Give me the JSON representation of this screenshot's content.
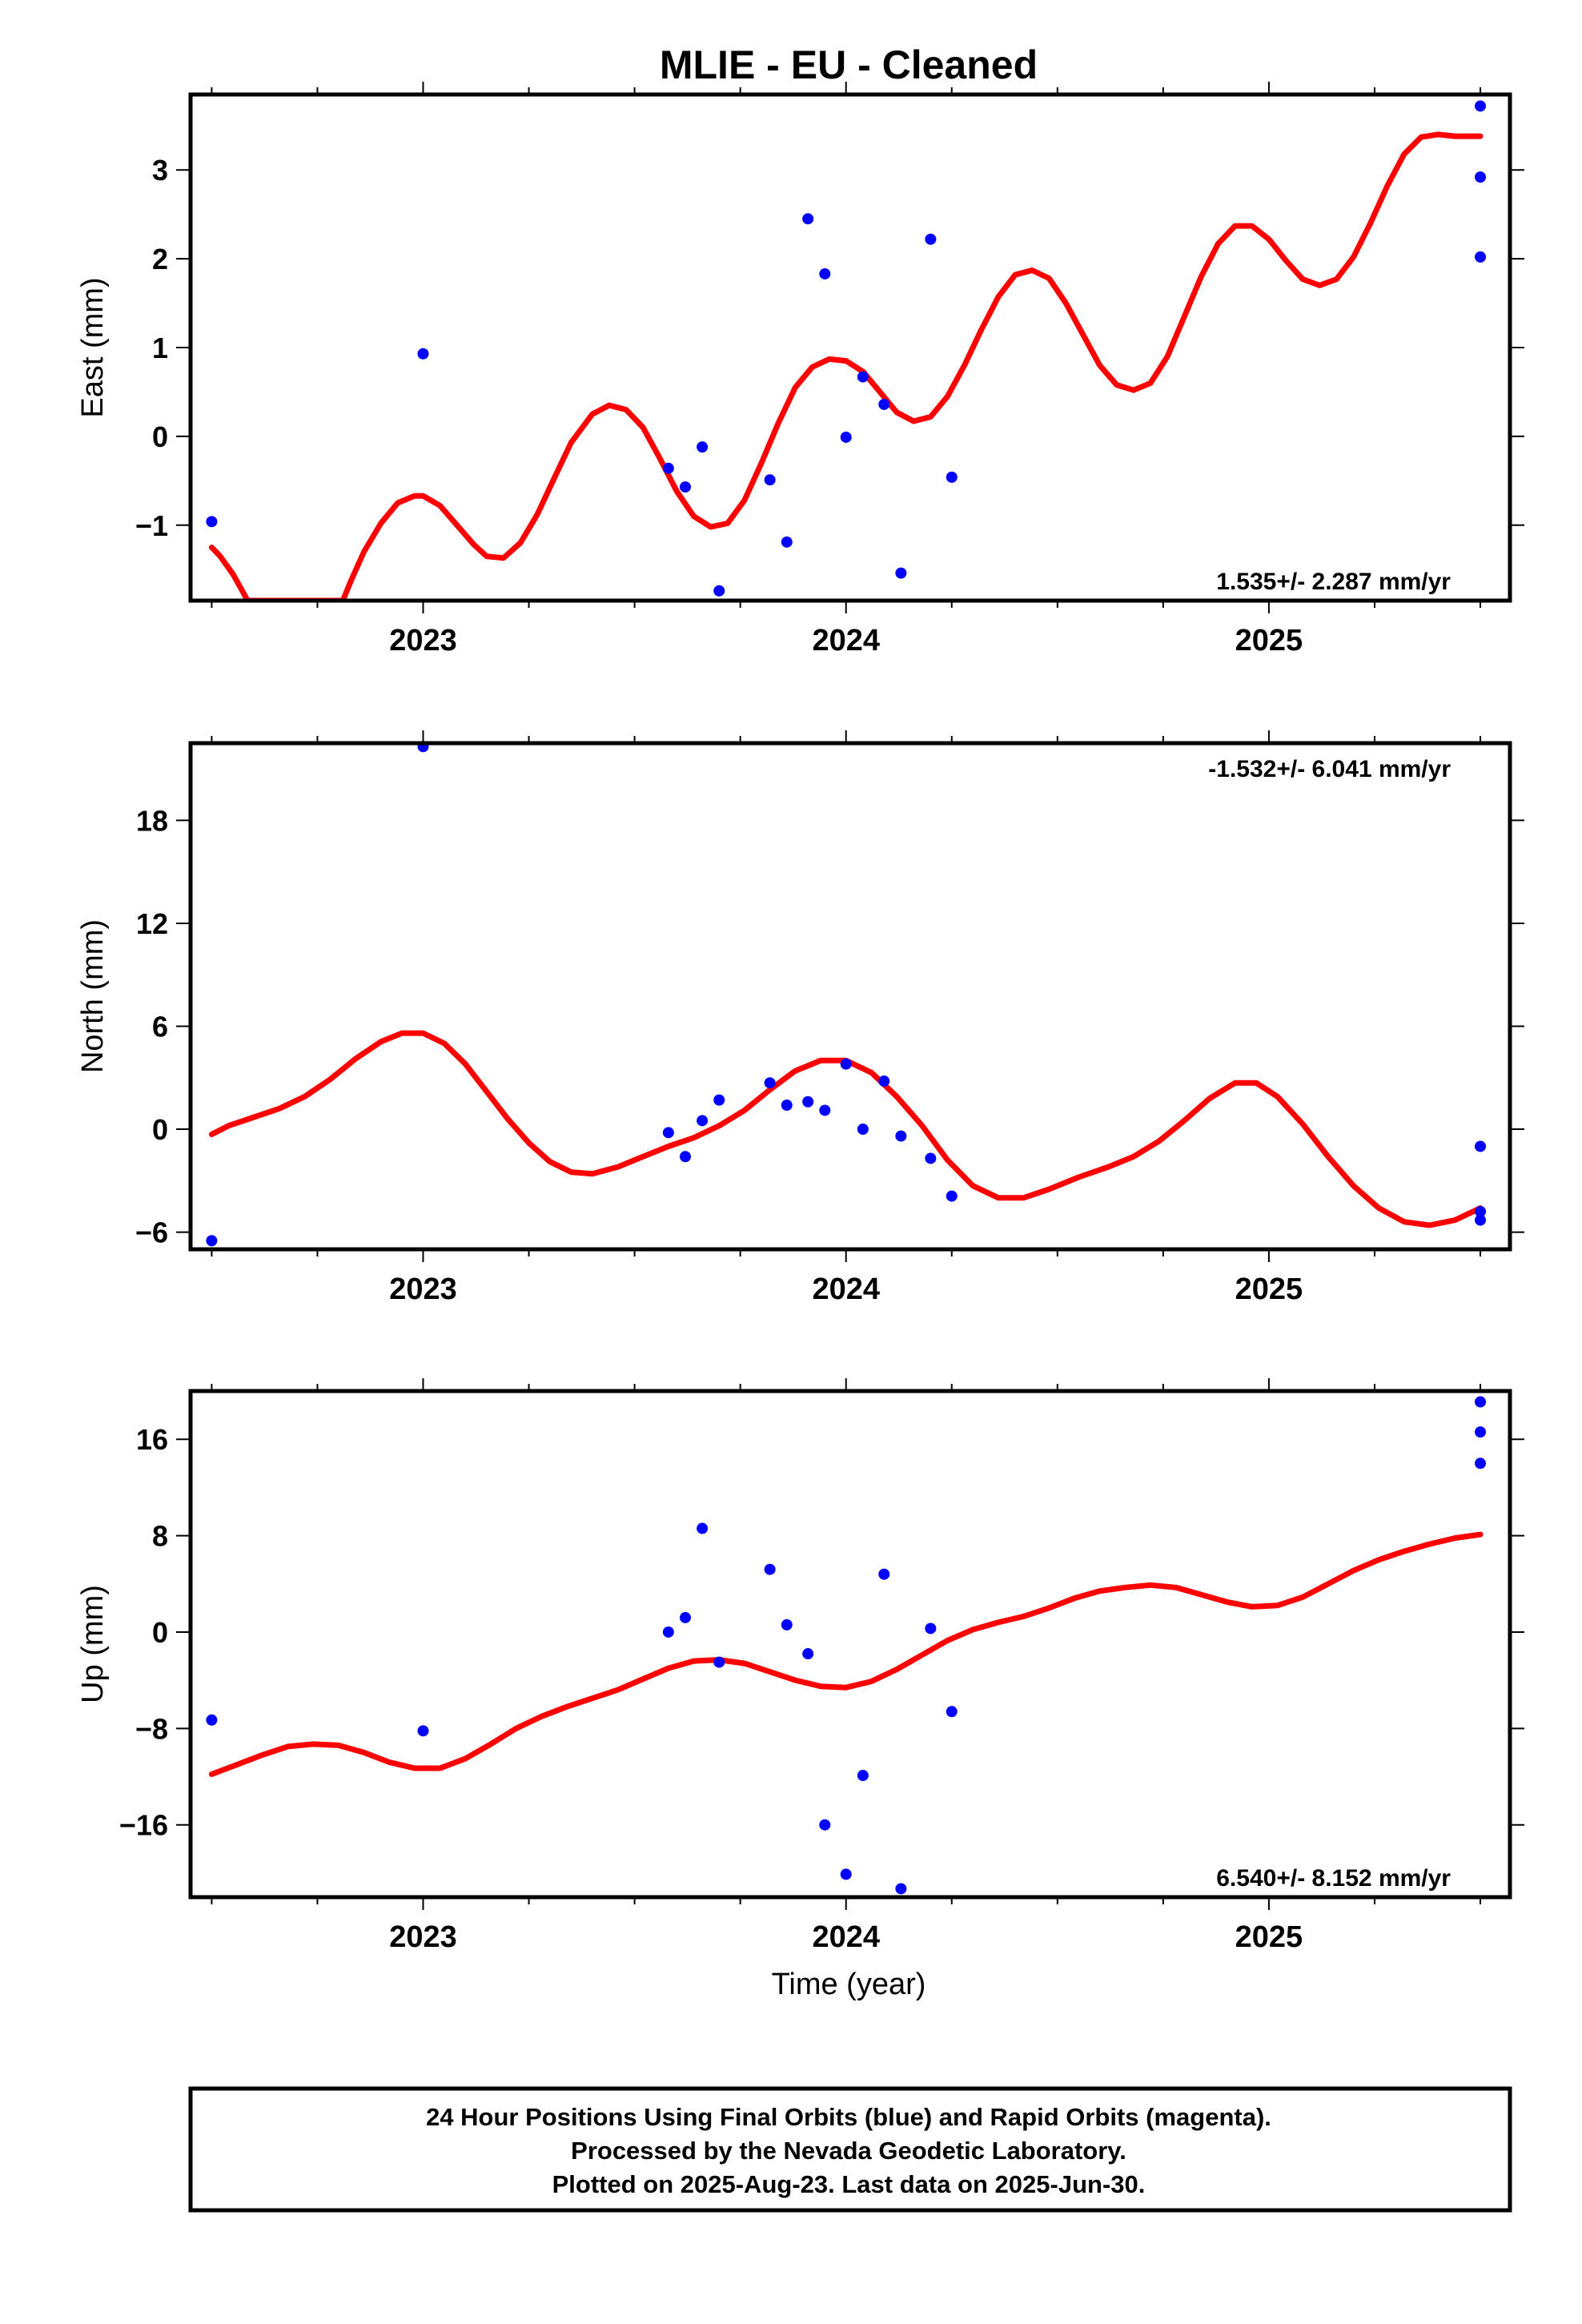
{
  "chart_data": {
    "title": "MLIE  - EU - Cleaned",
    "xlabel": "Time (year)",
    "x_ticks": [
      2023,
      2024,
      2025
    ],
    "x_range": [
      2022.45,
      2025.57
    ],
    "colors": {
      "points": "#0000ff",
      "fit": "#ff0000",
      "axes": "#000000"
    },
    "panels": [
      {
        "ylabel": "East (mm)",
        "type": "scatter",
        "ylim": [
          -1.85,
          3.85
        ],
        "yticks": [
          -1,
          0,
          1,
          2,
          3
        ],
        "rate_label": "1.535+/- 2.287 mm/yr",
        "rate_position": "bottom-right",
        "points": [
          [
            2022.5,
            -0.96
          ],
          [
            2023.0,
            0.93
          ],
          [
            2023.58,
            -0.36
          ],
          [
            2023.62,
            -0.57
          ],
          [
            2023.66,
            -0.12
          ],
          [
            2023.7,
            -1.74
          ],
          [
            2023.82,
            -0.49
          ],
          [
            2023.86,
            -1.19
          ],
          [
            2023.91,
            2.45
          ],
          [
            2023.95,
            1.83
          ],
          [
            2024.0,
            -0.01
          ],
          [
            2024.04,
            0.67
          ],
          [
            2024.09,
            0.36
          ],
          [
            2024.13,
            -1.54
          ],
          [
            2024.2,
            2.22
          ],
          [
            2024.25,
            -0.46
          ],
          [
            2025.5,
            3.72
          ],
          [
            2025.5,
            2.92
          ],
          [
            2025.5,
            2.02
          ]
        ],
        "fit": [
          [
            2022.5,
            -1.25
          ],
          [
            2022.52,
            -1.35
          ],
          [
            2022.55,
            -1.55
          ],
          [
            2022.57,
            -1.72
          ],
          [
            2022.585,
            -1.85
          ],
          [
            2022.81,
            -1.85
          ],
          [
            2022.83,
            -1.62
          ],
          [
            2022.86,
            -1.3
          ],
          [
            2022.9,
            -0.98
          ],
          [
            2022.94,
            -0.75
          ],
          [
            2022.98,
            -0.67
          ],
          [
            2023.0,
            -0.67
          ],
          [
            2023.04,
            -0.78
          ],
          [
            2023.08,
            -1.0
          ],
          [
            2023.12,
            -1.22
          ],
          [
            2023.15,
            -1.35
          ],
          [
            2023.19,
            -1.37
          ],
          [
            2023.23,
            -1.2
          ],
          [
            2023.27,
            -0.88
          ],
          [
            2023.31,
            -0.47
          ],
          [
            2023.35,
            -0.07
          ],
          [
            2023.4,
            0.25
          ],
          [
            2023.44,
            0.35
          ],
          [
            2023.48,
            0.3
          ],
          [
            2023.52,
            0.1
          ],
          [
            2023.56,
            -0.25
          ],
          [
            2023.6,
            -0.62
          ],
          [
            2023.64,
            -0.9
          ],
          [
            2023.68,
            -1.02
          ],
          [
            2023.72,
            -0.98
          ],
          [
            2023.76,
            -0.72
          ],
          [
            2023.8,
            -0.3
          ],
          [
            2023.84,
            0.15
          ],
          [
            2023.88,
            0.55
          ],
          [
            2023.92,
            0.78
          ],
          [
            2023.96,
            0.87
          ],
          [
            2024.0,
            0.85
          ],
          [
            2024.04,
            0.73
          ],
          [
            2024.08,
            0.5
          ],
          [
            2024.12,
            0.27
          ],
          [
            2024.16,
            0.17
          ],
          [
            2024.2,
            0.22
          ],
          [
            2024.24,
            0.45
          ],
          [
            2024.28,
            0.8
          ],
          [
            2024.32,
            1.2
          ],
          [
            2024.36,
            1.57
          ],
          [
            2024.4,
            1.82
          ],
          [
            2024.44,
            1.87
          ],
          [
            2024.48,
            1.78
          ],
          [
            2024.52,
            1.5
          ],
          [
            2024.56,
            1.15
          ],
          [
            2024.6,
            0.8
          ],
          [
            2024.64,
            0.58
          ],
          [
            2024.68,
            0.52
          ],
          [
            2024.72,
            0.6
          ],
          [
            2024.76,
            0.9
          ],
          [
            2024.8,
            1.35
          ],
          [
            2024.84,
            1.8
          ],
          [
            2024.88,
            2.17
          ],
          [
            2024.92,
            2.37
          ],
          [
            2024.96,
            2.37
          ],
          [
            2025.0,
            2.22
          ],
          [
            2025.04,
            1.98
          ],
          [
            2025.08,
            1.77
          ],
          [
            2025.12,
            1.7
          ],
          [
            2025.16,
            1.77
          ],
          [
            2025.2,
            2.02
          ],
          [
            2025.24,
            2.4
          ],
          [
            2025.28,
            2.82
          ],
          [
            2025.32,
            3.18
          ],
          [
            2025.36,
            3.37
          ],
          [
            2025.4,
            3.4
          ],
          [
            2025.44,
            3.38
          ],
          [
            2025.5,
            3.38
          ]
        ]
      },
      {
        "ylabel": "North (mm)",
        "type": "scatter",
        "ylim": [
          -7.0,
          22.5
        ],
        "yticks": [
          -6,
          0,
          6,
          12,
          18
        ],
        "rate_label": "-1.532+/- 6.041 mm/yr",
        "rate_position": "top-right",
        "points": [
          [
            2022.5,
            -6.5
          ],
          [
            2023.0,
            22.3
          ],
          [
            2023.58,
            -0.2
          ],
          [
            2023.62,
            -1.6
          ],
          [
            2023.66,
            0.5
          ],
          [
            2023.7,
            1.7
          ],
          [
            2023.82,
            2.7
          ],
          [
            2023.86,
            1.4
          ],
          [
            2023.91,
            1.6
          ],
          [
            2023.95,
            1.1
          ],
          [
            2024.0,
            3.8
          ],
          [
            2024.04,
            0.0
          ],
          [
            2024.09,
            2.8
          ],
          [
            2024.13,
            -0.4
          ],
          [
            2024.2,
            -1.7
          ],
          [
            2024.25,
            -3.9
          ],
          [
            2025.5,
            -1.0
          ],
          [
            2025.5,
            -4.8
          ],
          [
            2025.5,
            -5.3
          ]
        ],
        "fit": [
          [
            2022.5,
            -0.3
          ],
          [
            2022.54,
            0.2
          ],
          [
            2022.6,
            0.7
          ],
          [
            2022.66,
            1.2
          ],
          [
            2022.72,
            1.9
          ],
          [
            2022.78,
            2.9
          ],
          [
            2022.84,
            4.1
          ],
          [
            2022.9,
            5.1
          ],
          [
            2022.95,
            5.6
          ],
          [
            2023.0,
            5.6
          ],
          [
            2023.05,
            5.0
          ],
          [
            2023.1,
            3.8
          ],
          [
            2023.15,
            2.2
          ],
          [
            2023.2,
            0.6
          ],
          [
            2023.25,
            -0.8
          ],
          [
            2023.3,
            -1.9
          ],
          [
            2023.35,
            -2.5
          ],
          [
            2023.4,
            -2.6
          ],
          [
            2023.46,
            -2.2
          ],
          [
            2023.52,
            -1.6
          ],
          [
            2023.58,
            -1.0
          ],
          [
            2023.64,
            -0.5
          ],
          [
            2023.7,
            0.2
          ],
          [
            2023.76,
            1.1
          ],
          [
            2023.82,
            2.3
          ],
          [
            2023.88,
            3.4
          ],
          [
            2023.94,
            4.0
          ],
          [
            2024.0,
            4.0
          ],
          [
            2024.06,
            3.3
          ],
          [
            2024.12,
            1.9
          ],
          [
            2024.18,
            0.2
          ],
          [
            2024.24,
            -1.8
          ],
          [
            2024.3,
            -3.3
          ],
          [
            2024.36,
            -4.0
          ],
          [
            2024.42,
            -4.0
          ],
          [
            2024.48,
            -3.5
          ],
          [
            2024.55,
            -2.8
          ],
          [
            2024.62,
            -2.2
          ],
          [
            2024.68,
            -1.6
          ],
          [
            2024.74,
            -0.7
          ],
          [
            2024.8,
            0.5
          ],
          [
            2024.86,
            1.8
          ],
          [
            2024.92,
            2.7
          ],
          [
            2024.97,
            2.7
          ],
          [
            2025.02,
            1.9
          ],
          [
            2025.08,
            0.3
          ],
          [
            2025.14,
            -1.6
          ],
          [
            2025.2,
            -3.3
          ],
          [
            2025.26,
            -4.6
          ],
          [
            2025.32,
            -5.4
          ],
          [
            2025.38,
            -5.6
          ],
          [
            2025.44,
            -5.3
          ],
          [
            2025.5,
            -4.6
          ]
        ]
      },
      {
        "ylabel": "Up (mm)",
        "type": "scatter",
        "ylim": [
          -22.0,
          20.0
        ],
        "yticks": [
          -16,
          -8,
          0,
          8,
          16
        ],
        "rate_label": "6.540+/- 8.152 mm/yr",
        "rate_position": "bottom-right",
        "points": [
          [
            2022.5,
            -7.3
          ],
          [
            2023.0,
            -8.2
          ],
          [
            2023.58,
            0.0
          ],
          [
            2023.62,
            1.2
          ],
          [
            2023.66,
            8.6
          ],
          [
            2023.7,
            -2.5
          ],
          [
            2023.82,
            5.2
          ],
          [
            2023.86,
            0.6
          ],
          [
            2023.91,
            -1.8
          ],
          [
            2023.95,
            -16.0
          ],
          [
            2024.0,
            -20.1
          ],
          [
            2024.04,
            -11.9
          ],
          [
            2024.09,
            4.8
          ],
          [
            2024.13,
            -21.3
          ],
          [
            2024.2,
            0.3
          ],
          [
            2024.25,
            -6.6
          ],
          [
            2025.5,
            19.1
          ],
          [
            2025.5,
            16.6
          ],
          [
            2025.5,
            14.0
          ]
        ],
        "fit": [
          [
            2022.5,
            -11.8
          ],
          [
            2022.56,
            -11.0
          ],
          [
            2022.62,
            -10.2
          ],
          [
            2022.68,
            -9.5
          ],
          [
            2022.74,
            -9.3
          ],
          [
            2022.8,
            -9.4
          ],
          [
            2022.86,
            -10.0
          ],
          [
            2022.92,
            -10.8
          ],
          [
            2022.98,
            -11.3
          ],
          [
            2023.04,
            -11.3
          ],
          [
            2023.1,
            -10.5
          ],
          [
            2023.16,
            -9.3
          ],
          [
            2023.22,
            -8.0
          ],
          [
            2023.28,
            -7.0
          ],
          [
            2023.34,
            -6.2
          ],
          [
            2023.4,
            -5.5
          ],
          [
            2023.46,
            -4.8
          ],
          [
            2023.52,
            -3.9
          ],
          [
            2023.58,
            -3.0
          ],
          [
            2023.64,
            -2.4
          ],
          [
            2023.7,
            -2.3
          ],
          [
            2023.76,
            -2.6
          ],
          [
            2023.82,
            -3.3
          ],
          [
            2023.88,
            -4.0
          ],
          [
            2023.94,
            -4.5
          ],
          [
            2024.0,
            -4.6
          ],
          [
            2024.06,
            -4.1
          ],
          [
            2024.12,
            -3.1
          ],
          [
            2024.18,
            -1.9
          ],
          [
            2024.24,
            -0.7
          ],
          [
            2024.3,
            0.2
          ],
          [
            2024.36,
            0.8
          ],
          [
            2024.42,
            1.3
          ],
          [
            2024.48,
            2.0
          ],
          [
            2024.54,
            2.8
          ],
          [
            2024.6,
            3.4
          ],
          [
            2024.66,
            3.7
          ],
          [
            2024.72,
            3.9
          ],
          [
            2024.78,
            3.7
          ],
          [
            2024.84,
            3.1
          ],
          [
            2024.9,
            2.5
          ],
          [
            2024.96,
            2.1
          ],
          [
            2025.02,
            2.2
          ],
          [
            2025.08,
            2.9
          ],
          [
            2025.14,
            4.0
          ],
          [
            2025.2,
            5.1
          ],
          [
            2025.26,
            6.0
          ],
          [
            2025.32,
            6.7
          ],
          [
            2025.38,
            7.3
          ],
          [
            2025.44,
            7.8
          ],
          [
            2025.5,
            8.1
          ]
        ]
      }
    ]
  },
  "footer": {
    "line1": "24 Hour Positions Using Final Orbits (blue) and Rapid Orbits (magenta).",
    "line2": "Processed by the Nevada Geodetic Laboratory.",
    "line3": "Plotted on 2025-Aug-23. Last data on 2025-Jun-30."
  }
}
